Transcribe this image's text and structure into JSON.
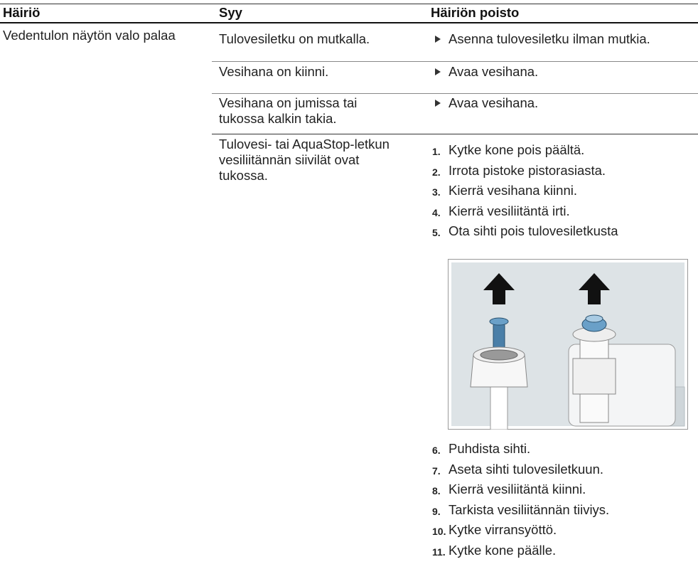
{
  "header": {
    "columns": [
      "Häiriö",
      "Syy",
      "Häiriön poisto"
    ]
  },
  "table": {
    "problem": "Vedentulon näytön valo palaa",
    "rows": [
      {
        "cause": "Tulovesiletku on mutkalla.",
        "remedy": "Asenna tulovesiletku ilman mutkia."
      },
      {
        "cause": "Vesihana on kiinni.",
        "remedy": "Avaa vesihana."
      },
      {
        "cause": "Vesihana on jumissa tai tukossa kalkin takia.",
        "remedy": "Avaa vesihana."
      },
      {
        "cause": "Tulovesi- tai AquaStop-letkun vesiliitännän siivilät ovat tukossa.",
        "steps_before": [
          {
            "number": "1.",
            "text": "Kytke kone pois päältä."
          },
          {
            "number": "2.",
            "text": "Irrota pistoke pistorasiasta."
          },
          {
            "number": "3.",
            "text": "Kierrä vesihana kiinni."
          },
          {
            "number": "4.",
            "text": "Kierrä vesiliitäntä irti."
          },
          {
            "number": "5.",
            "text": "Ota sihti pois tulovesiletkusta"
          }
        ],
        "steps_after": [
          {
            "number": "6.",
            "text": "Puhdista sihti."
          },
          {
            "number": "7.",
            "text": "Aseta sihti tulovesiletkuun."
          },
          {
            "number": "8.",
            "text": "Kierrä vesiliitäntä kiinni."
          },
          {
            "number": "9.",
            "text": "Tarkista vesiliitännän tiiviys."
          },
          {
            "number": "10.",
            "text": "Kytke virransyöttö."
          },
          {
            "number": "11.",
            "text": "Kytke kone päälle."
          }
        ]
      }
    ]
  }
}
